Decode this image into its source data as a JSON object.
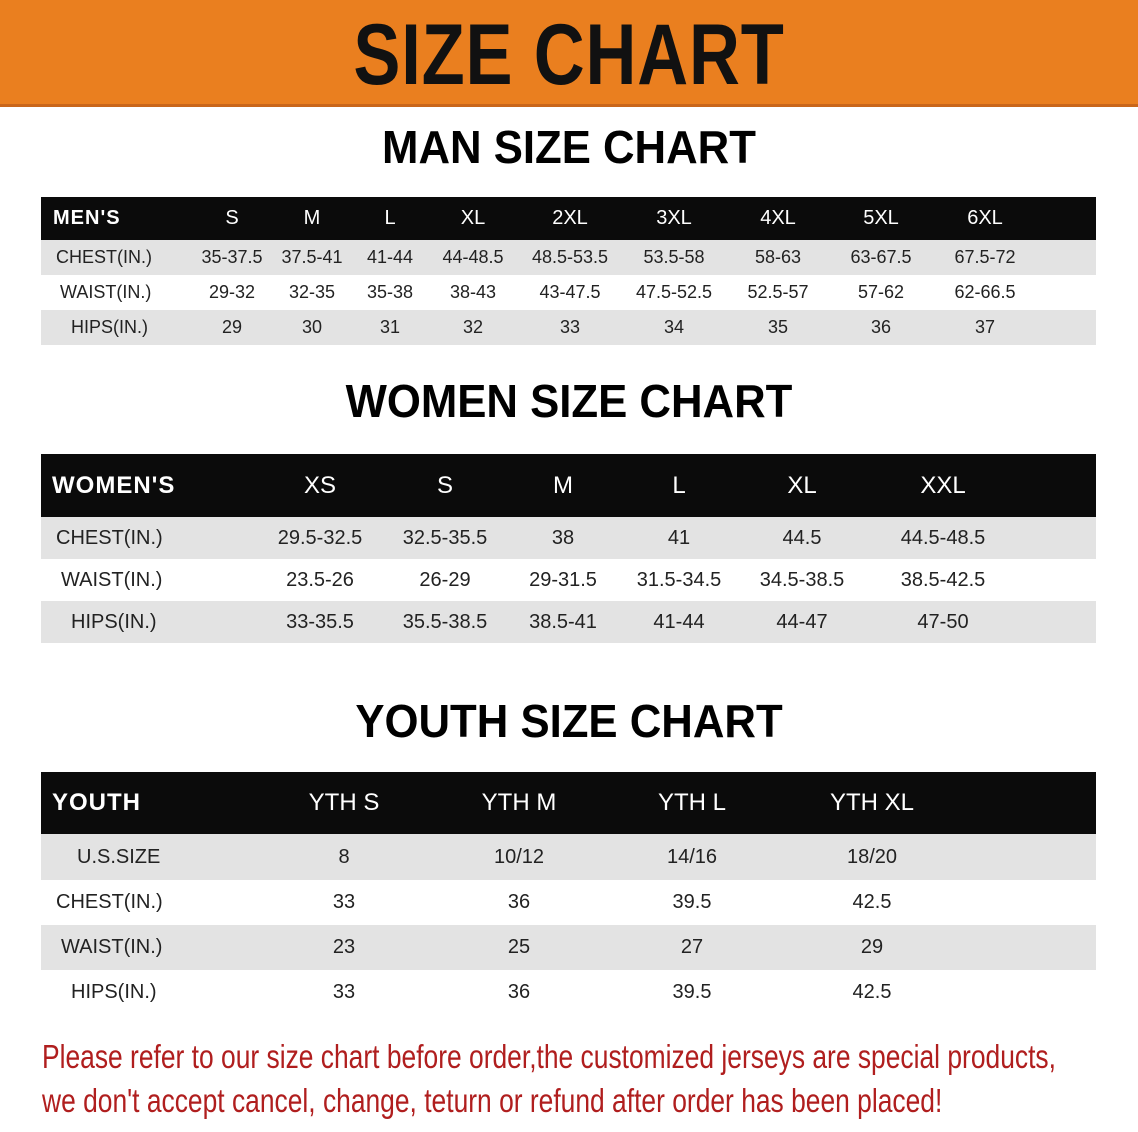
{
  "banner_title": "SIZE CHART",
  "colors": {
    "banner": "#ea7f1f",
    "header_row": "#0b0b0b",
    "stripe": "#e3e3e3",
    "note": "#b01e1e"
  },
  "tables": [
    {
      "id": "men",
      "title": "MAN SIZE CHART",
      "header": [
        "MEN'S",
        "S",
        "M",
        "L",
        "XL",
        "2XL",
        "3XL",
        "4XL",
        "5XL",
        "6XL"
      ],
      "rows": [
        [
          "CHEST(IN.)",
          "35-37.5",
          "37.5-41",
          "41-44",
          "44-48.5",
          "48.5-53.5",
          "53.5-58",
          "58-63",
          "63-67.5",
          "67.5-72"
        ],
        [
          "WAIST(IN.)",
          "29-32",
          "32-35",
          "35-38",
          "38-43",
          "43-47.5",
          "47.5-52.5",
          "52.5-57",
          "57-62",
          "62-66.5"
        ],
        [
          "HIPS(IN.)",
          "29",
          "30",
          "31",
          "32",
          "33",
          "34",
          "35",
          "36",
          "37"
        ]
      ]
    },
    {
      "id": "women",
      "title": "WOMEN SIZE CHART",
      "header": [
        "WOMEN'S",
        "XS",
        "S",
        "M",
        "L",
        "XL",
        "XXL"
      ],
      "rows": [
        [
          "CHEST(IN.)",
          "29.5-32.5",
          "32.5-35.5",
          "38",
          "41",
          "44.5",
          "44.5-48.5"
        ],
        [
          "WAIST(IN.)",
          "23.5-26",
          "26-29",
          "29-31.5",
          "31.5-34.5",
          "34.5-38.5",
          "38.5-42.5"
        ],
        [
          "HIPS(IN.)",
          "33-35.5",
          "35.5-38.5",
          "38.5-41",
          "41-44",
          "44-47",
          "47-50"
        ]
      ]
    },
    {
      "id": "youth",
      "title": "YOUTH SIZE CHART",
      "header": [
        "YOUTH",
        "YTH S",
        "YTH M",
        "YTH L",
        "YTH XL"
      ],
      "rows": [
        [
          "U.S.SIZE",
          "8",
          "10/12",
          "14/16",
          "18/20"
        ],
        [
          "CHEST(IN.)",
          "33",
          "36",
          "39.5",
          "42.5"
        ],
        [
          "WAIST(IN.)",
          "23",
          "25",
          "27",
          "29"
        ],
        [
          "HIPS(IN.)",
          "33",
          "36",
          "39.5",
          "42.5"
        ]
      ]
    }
  ],
  "notice": [
    "Please refer to our size chart before order,the customized jerseys are special products,",
    "we don't accept cancel, change, teturn or refund after order has been placed!"
  ]
}
